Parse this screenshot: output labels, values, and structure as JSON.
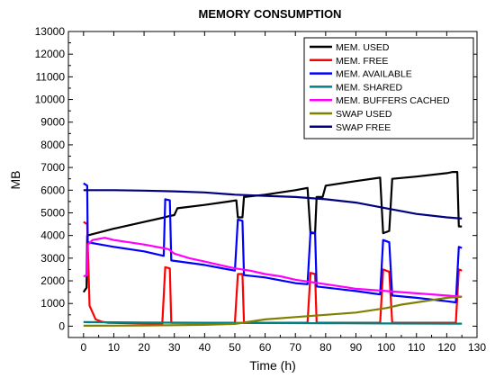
{
  "chart_data": {
    "type": "line",
    "title": "MEMORY CONSUMPTION",
    "xlabel": "Time (h)",
    "ylabel": "MB",
    "xlim": [
      -5,
      130
    ],
    "ylim": [
      -500,
      13000
    ],
    "x_ticks": [
      0,
      10,
      20,
      30,
      40,
      50,
      60,
      70,
      80,
      90,
      100,
      110,
      120,
      130
    ],
    "y_ticks": [
      0,
      1000,
      2000,
      3000,
      4000,
      5000,
      6000,
      7000,
      8000,
      9000,
      10000,
      11000,
      12000,
      13000
    ],
    "legend_position": "top-right",
    "grid": false,
    "series": [
      {
        "name": "MEM. USED",
        "color": "#000000",
        "points": [
          [
            0,
            1500
          ],
          [
            1,
            1700
          ],
          [
            1.2,
            4000
          ],
          [
            10,
            4300
          ],
          [
            20,
            4600
          ],
          [
            26.8,
            4800
          ],
          [
            28,
            4850
          ],
          [
            30,
            4900
          ],
          [
            31,
            5200
          ],
          [
            40,
            5350
          ],
          [
            48,
            5500
          ],
          [
            50.5,
            5550
          ],
          [
            51,
            4800
          ],
          [
            52.5,
            4800
          ],
          [
            53,
            5700
          ],
          [
            60,
            5800
          ],
          [
            70,
            6000
          ],
          [
            74,
            6100
          ],
          [
            75,
            4100
          ],
          [
            76.5,
            4100
          ],
          [
            77,
            5700
          ],
          [
            79,
            5700
          ],
          [
            80,
            6200
          ],
          [
            90,
            6400
          ],
          [
            98,
            6550
          ],
          [
            99,
            4100
          ],
          [
            101,
            4200
          ],
          [
            102,
            6500
          ],
          [
            110,
            6600
          ],
          [
            120,
            6750
          ],
          [
            122,
            6800
          ],
          [
            123.5,
            6800
          ],
          [
            124,
            4400
          ],
          [
            125,
            4400
          ]
        ]
      },
      {
        "name": "MEM. FREE",
        "color": "#ff0000",
        "points": [
          [
            0,
            4600
          ],
          [
            1.2,
            4500
          ],
          [
            2,
            900
          ],
          [
            4,
            300
          ],
          [
            6,
            200
          ],
          [
            8,
            150
          ],
          [
            26,
            100
          ],
          [
            27,
            2600
          ],
          [
            28.5,
            2550
          ],
          [
            29,
            150
          ],
          [
            50,
            150
          ],
          [
            51,
            2300
          ],
          [
            52.5,
            2300
          ],
          [
            53,
            150
          ],
          [
            74,
            150
          ],
          [
            75,
            2350
          ],
          [
            76.5,
            2300
          ],
          [
            77,
            150
          ],
          [
            98,
            150
          ],
          [
            99,
            2500
          ],
          [
            101,
            2400
          ],
          [
            102,
            150
          ],
          [
            123,
            150
          ],
          [
            124,
            2500
          ],
          [
            125,
            2450
          ]
        ]
      },
      {
        "name": "MEM. AVAILABLE",
        "color": "#0000ff",
        "points": [
          [
            0,
            6300
          ],
          [
            1.2,
            6200
          ],
          [
            1.4,
            3700
          ],
          [
            10,
            3500
          ],
          [
            20,
            3300
          ],
          [
            26.5,
            3100
          ],
          [
            27,
            5600
          ],
          [
            28.5,
            5550
          ],
          [
            29,
            2900
          ],
          [
            40,
            2700
          ],
          [
            50,
            2450
          ],
          [
            51,
            4700
          ],
          [
            52.5,
            4650
          ],
          [
            53,
            2250
          ],
          [
            60,
            2150
          ],
          [
            70,
            1900
          ],
          [
            74,
            1850
          ],
          [
            75,
            4150
          ],
          [
            76.5,
            4100
          ],
          [
            77,
            1750
          ],
          [
            90,
            1550
          ],
          [
            98,
            1400
          ],
          [
            99,
            3800
          ],
          [
            101,
            3700
          ],
          [
            102,
            1350
          ],
          [
            110,
            1250
          ],
          [
            120,
            1100
          ],
          [
            123,
            1050
          ],
          [
            124,
            3500
          ],
          [
            125,
            3450
          ]
        ]
      },
      {
        "name": "MEM. SHARED",
        "color": "#008080",
        "points": [
          [
            0,
            180
          ],
          [
            20,
            160
          ],
          [
            40,
            150
          ],
          [
            60,
            140
          ],
          [
            80,
            130
          ],
          [
            100,
            120
          ],
          [
            125,
            110
          ]
        ]
      },
      {
        "name": "MEM. BUFFERS CACHED",
        "color": "#ff00ff",
        "points": [
          [
            0,
            2200
          ],
          [
            1.2,
            2250
          ],
          [
            1.4,
            3600
          ],
          [
            3,
            3800
          ],
          [
            5,
            3850
          ],
          [
            7,
            3900
          ],
          [
            10,
            3800
          ],
          [
            15,
            3700
          ],
          [
            20,
            3600
          ],
          [
            26,
            3450
          ],
          [
            28,
            3400
          ],
          [
            30,
            3200
          ],
          [
            35,
            3000
          ],
          [
            40,
            2850
          ],
          [
            45,
            2700
          ],
          [
            50,
            2550
          ],
          [
            55,
            2450
          ],
          [
            60,
            2300
          ],
          [
            65,
            2200
          ],
          [
            70,
            2050
          ],
          [
            75,
            1950
          ],
          [
            80,
            1850
          ],
          [
            85,
            1750
          ],
          [
            90,
            1650
          ],
          [
            95,
            1600
          ],
          [
            100,
            1550
          ],
          [
            105,
            1500
          ],
          [
            110,
            1450
          ],
          [
            115,
            1400
          ],
          [
            120,
            1350
          ],
          [
            125,
            1300
          ]
        ]
      },
      {
        "name": "SWAP USED",
        "color": "#808000",
        "points": [
          [
            0,
            20
          ],
          [
            20,
            30
          ],
          [
            40,
            60
          ],
          [
            50,
            100
          ],
          [
            55,
            200
          ],
          [
            60,
            300
          ],
          [
            70,
            400
          ],
          [
            80,
            500
          ],
          [
            90,
            600
          ],
          [
            100,
            800
          ],
          [
            105,
            950
          ],
          [
            110,
            1050
          ],
          [
            115,
            1150
          ],
          [
            120,
            1250
          ],
          [
            125,
            1300
          ]
        ]
      },
      {
        "name": "SWAP FREE",
        "color": "#000080",
        "points": [
          [
            0,
            6000
          ],
          [
            10,
            6000
          ],
          [
            20,
            5980
          ],
          [
            30,
            5950
          ],
          [
            40,
            5900
          ],
          [
            50,
            5800
          ],
          [
            60,
            5750
          ],
          [
            70,
            5700
          ],
          [
            80,
            5600
          ],
          [
            90,
            5450
          ],
          [
            100,
            5200
          ],
          [
            110,
            4950
          ],
          [
            120,
            4800
          ],
          [
            125,
            4750
          ]
        ]
      }
    ]
  }
}
